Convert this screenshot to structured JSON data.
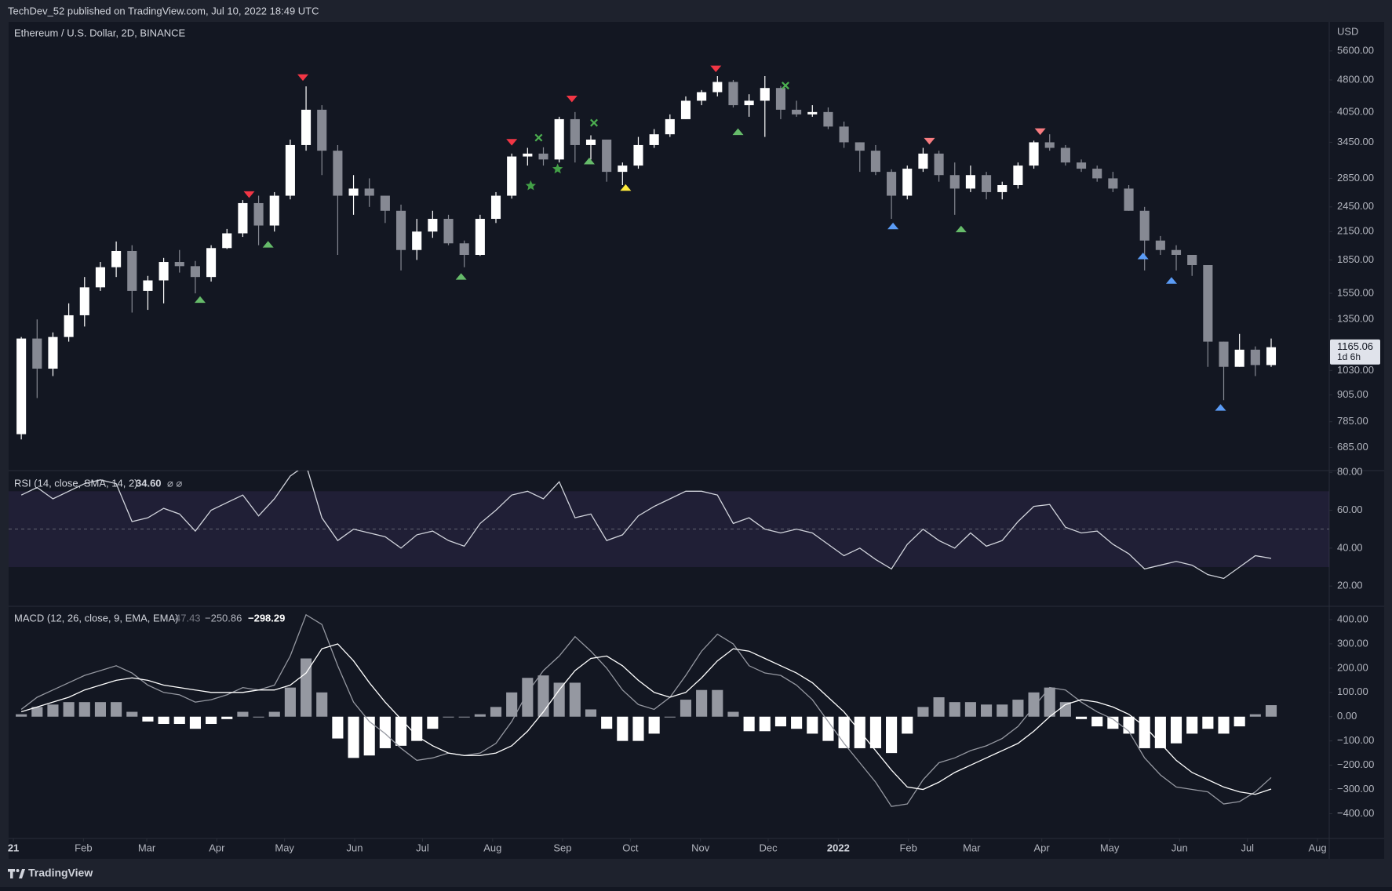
{
  "header": {
    "publisher": "TechDev_52 published on TradingView.com, Jul 10, 2022 18:49 UTC"
  },
  "footer": {
    "brand": "TradingView"
  },
  "chart_data": [
    {
      "type": "candlestick",
      "title": "Ethereum / U.S. Dollar, 2D, BINANCE",
      "y_unit": "USD",
      "log_scale": true,
      "grid": false,
      "xlim": [
        -0.8,
        82.67
      ],
      "xticks": [
        {
          "value": -0.5,
          "label": "21"
        },
        {
          "value": 3.93,
          "label": "Feb"
        },
        {
          "value": 7.93,
          "label": "Mar"
        },
        {
          "value": 12.36,
          "label": "Apr"
        },
        {
          "value": 16.64,
          "label": "May"
        },
        {
          "value": 21.07,
          "label": "Jun"
        },
        {
          "value": 25.36,
          "label": "Jul"
        },
        {
          "value": 29.79,
          "label": "Aug"
        },
        {
          "value": 34.21,
          "label": "Sep"
        },
        {
          "value": 38.5,
          "label": "Oct"
        },
        {
          "value": 42.93,
          "label": "Nov"
        },
        {
          "value": 47.21,
          "label": "Dec"
        },
        {
          "value": 51.64,
          "label": "2022"
        },
        {
          "value": 56.07,
          "label": "Feb"
        },
        {
          "value": 60.07,
          "label": "Mar"
        },
        {
          "value": 64.5,
          "label": "Apr"
        },
        {
          "value": 68.79,
          "label": "May"
        },
        {
          "value": 73.21,
          "label": "Jun"
        },
        {
          "value": 77.5,
          "label": "Jul"
        },
        {
          "value": 81.93,
          "label": "Aug"
        }
      ],
      "ylim": [
        606,
        6500
      ],
      "yticks": [
        {
          "value": 685,
          "label": "685.00"
        },
        {
          "value": 785,
          "label": "785.00"
        },
        {
          "value": 905,
          "label": "905.00"
        },
        {
          "value": 1030,
          "label": "1030.00"
        },
        {
          "value": 1350,
          "label": "1350.00"
        },
        {
          "value": 1550,
          "label": "1550.00"
        },
        {
          "value": 1850,
          "label": "1850.00"
        },
        {
          "value": 2150,
          "label": "2150.00"
        },
        {
          "value": 2450,
          "label": "2450.00"
        },
        {
          "value": 2850,
          "label": "2850.00"
        },
        {
          "value": 3450,
          "label": "3450.00"
        },
        {
          "value": 4050,
          "label": "4050.00"
        },
        {
          "value": 4800,
          "label": "4800.00"
        },
        {
          "value": 5600,
          "label": "5600.00"
        }
      ],
      "up_color": "#ffffff",
      "down_color": "#868993",
      "open": [
        735,
        1220,
        1040,
        1230,
        1380,
        1600,
        1780,
        1940,
        1570,
        1660,
        1830,
        1790,
        1690,
        1970,
        2130,
        2500,
        2220,
        2600,
        3400,
        4100,
        3300,
        2600,
        2700,
        2600,
        2400,
        1950,
        2150,
        2300,
        2020,
        1900,
        2300,
        2600,
        3200,
        3250,
        3150,
        3900,
        3400,
        3500,
        2950,
        3050,
        3400,
        3600,
        3900,
        4300,
        4500,
        4750,
        4200,
        4300,
        4600,
        4100,
        4000,
        4050,
        3750,
        3450,
        3300,
        2950,
        2600,
        3000,
        3250,
        2900,
        2700,
        2900,
        2650,
        2750,
        3050,
        3450,
        3350,
        3100,
        3000,
        2850,
        2700,
        2400,
        2050,
        1950,
        1900,
        1800,
        1200,
        1050,
        1150,
        1060
      ],
      "high": [
        1230,
        1350,
        1260,
        1470,
        1690,
        1830,
        2040,
        2000,
        1700,
        1870,
        1950,
        1840,
        2000,
        2180,
        2540,
        2600,
        2650,
        3500,
        4640,
        4200,
        3400,
        2900,
        2850,
        2600,
        2480,
        2300,
        2400,
        2350,
        2050,
        2350,
        2650,
        3250,
        3350,
        3360,
        3950,
        4050,
        3580,
        3500,
        3100,
        3550,
        3700,
        4000,
        4400,
        4550,
        4900,
        4800,
        4450,
        4900,
        4650,
        4300,
        4200,
        4150,
        3850,
        3450,
        3400,
        2990,
        3050,
        3350,
        3300,
        3100,
        3050,
        2950,
        2800,
        3100,
        3480,
        3600,
        3400,
        3150,
        3050,
        2950,
        2750,
        2450,
        2100,
        2000,
        1900,
        1800,
        1200,
        1250,
        1170,
        1220
      ],
      "low": [
        715,
        890,
        1000,
        1200,
        1300,
        1570,
        1690,
        1400,
        1420,
        1470,
        1730,
        1550,
        1650,
        1960,
        2090,
        2000,
        2150,
        2550,
        3300,
        2900,
        1900,
        2350,
        2450,
        2250,
        1750,
        1850,
        2080,
        2000,
        1780,
        1890,
        2250,
        2560,
        3050,
        3050,
        3100,
        3100,
        3150,
        2800,
        2750,
        3000,
        3350,
        3550,
        3900,
        4200,
        4400,
        4150,
        3950,
        3550,
        3900,
        3950,
        3950,
        3700,
        3350,
        2950,
        2900,
        2300,
        2550,
        2950,
        2800,
        2350,
        2650,
        2550,
        2550,
        2700,
        3000,
        3300,
        3050,
        2950,
        2800,
        2650,
        2400,
        1750,
        1900,
        1750,
        1700,
        1050,
        880,
        1050,
        1000,
        1050
      ],
      "close": [
        1220,
        1040,
        1230,
        1380,
        1600,
        1780,
        1940,
        1570,
        1660,
        1830,
        1790,
        1690,
        1970,
        2130,
        2500,
        2220,
        2600,
        3400,
        4100,
        3300,
        2600,
        2700,
        2600,
        2400,
        1950,
        2150,
        2300,
        2020,
        1900,
        2300,
        2600,
        3200,
        3250,
        3150,
        3900,
        3400,
        3500,
        2950,
        3050,
        3400,
        3600,
        3900,
        4300,
        4500,
        4750,
        4200,
        4300,
        4600,
        4100,
        4000,
        4050,
        3750,
        3450,
        3300,
        2950,
        2600,
        3000,
        3250,
        2900,
        2700,
        2900,
        2650,
        2750,
        3050,
        3450,
        3350,
        3100,
        3000,
        2850,
        2700,
        2400,
        2050,
        1950,
        1900,
        1800,
        1200,
        1050,
        1150,
        1060,
        1165.06
      ],
      "last_price": {
        "value": 1165.06,
        "label": "1165.06"
      },
      "countdown": "1d 6h",
      "markers": [
        {
          "shape": "triangle-down",
          "color": "#f23645",
          "x": [
            14.4,
            17.8,
            31.0,
            34.8,
            43.9
          ],
          "values": [
            2615,
            4860,
            3450,
            4340,
            5090
          ]
        },
        {
          "shape": "triangle-down",
          "color": "#f77c80",
          "x": [
            57.4,
            64.4
          ],
          "values": [
            3470,
            3650
          ]
        },
        {
          "shape": "triangle-up",
          "color": "#66bb6a",
          "x": [
            11.3,
            15.6,
            27.8,
            35.9,
            45.3,
            59.4
          ],
          "values": [
            1500,
            2010,
            1695,
            3125,
            3650,
            2180
          ]
        },
        {
          "shape": "triangle-up",
          "color": "#5b9cf6",
          "x": [
            55.1,
            70.9,
            72.7,
            75.8
          ],
          "values": [
            2215,
            1890,
            1660,
            847
          ]
        },
        {
          "shape": "triangle-up",
          "color": "#ffeb3b",
          "x": [
            38.2
          ],
          "values": [
            2715
          ]
        },
        {
          "shape": "star",
          "color": "#43a047",
          "x": [
            32.2,
            33.9
          ],
          "values": [
            2740,
            2995
          ]
        },
        {
          "shape": "cross",
          "color": "#4caf50",
          "x": [
            32.7,
            36.2,
            48.3
          ],
          "values": [
            3535,
            3825,
            4660
          ]
        }
      ]
    },
    {
      "type": "line",
      "title": "RSI (14, close, SMA, 14, 2)",
      "current": {
        "value": 34.6,
        "label": "34.60"
      },
      "flags": "⌀ ⌀",
      "ylim": [
        9.3,
        80.9
      ],
      "yticks": [
        {
          "value": 20,
          "label": "20.00"
        },
        {
          "value": 40,
          "label": "40.00"
        },
        {
          "value": 60,
          "label": "60.00"
        },
        {
          "value": 80,
          "label": "80.00"
        }
      ],
      "band": [
        30,
        70
      ],
      "band_color": "rgba(126,87,194,0.13)",
      "midline": 50,
      "series": [
        {
          "color": "#d1d4dc",
          "values": [
            68,
            72,
            66,
            70,
            74,
            76,
            74,
            54,
            56,
            61,
            58,
            49,
            60,
            64,
            68,
            57,
            66,
            78,
            84,
            56,
            44,
            50,
            48,
            46,
            40,
            47,
            49,
            44,
            41,
            53,
            60,
            68,
            70,
            66,
            75,
            56,
            58,
            44,
            47,
            57,
            62,
            66,
            70,
            70,
            68,
            53,
            56,
            50,
            48,
            50,
            48,
            42,
            36,
            40,
            34,
            29,
            42,
            50,
            44,
            40,
            48,
            41,
            44,
            54,
            62,
            63,
            51,
            48,
            49,
            42,
            37,
            29,
            31,
            33,
            31,
            26,
            24,
            30,
            36,
            34.6
          ]
        }
      ]
    },
    {
      "type": "macd",
      "title": "MACD (12, 26, close, 9, EMA, EMA)",
      "readout": [
        {
          "value": 47.43,
          "label": "47.43"
        },
        {
          "value": -250.86,
          "label": "−250.86"
        },
        {
          "value": -298.29,
          "label": "−298.29"
        }
      ],
      "ylim": [
        -502,
        455
      ],
      "yticks": [
        {
          "value": -400,
          "label": "−400.00"
        },
        {
          "value": -300,
          "label": "−300.00"
        },
        {
          "value": -200,
          "label": "−200.00"
        },
        {
          "value": -100,
          "label": "−100.00"
        },
        {
          "value": 0,
          "label": "0.00"
        },
        {
          "value": 100,
          "label": "100.00"
        },
        {
          "value": 200,
          "label": "200.00"
        },
        {
          "value": 300,
          "label": "300.00"
        },
        {
          "value": 400,
          "label": "400.00"
        }
      ],
      "histogram": {
        "up_color": "#9598a1",
        "down_color": "#ffffff",
        "values": [
          10,
          40,
          50,
          60,
          60,
          60,
          60,
          20,
          -20,
          -30,
          -30,
          -50,
          -30,
          -10,
          20,
          0,
          20,
          120,
          240,
          100,
          -90,
          -170,
          -160,
          -130,
          -120,
          -100,
          -50,
          0,
          0,
          10,
          40,
          100,
          160,
          170,
          140,
          140,
          30,
          -50,
          -100,
          -100,
          -70,
          0,
          70,
          110,
          110,
          20,
          -60,
          -60,
          -40,
          -50,
          -70,
          -100,
          -130,
          -130,
          -130,
          -150,
          -70,
          40,
          80,
          60,
          60,
          50,
          50,
          70,
          100,
          120,
          60,
          -10,
          -40,
          -50,
          -70,
          -130,
          -130,
          -110,
          -70,
          -50,
          -70,
          -40,
          10,
          47.43
        ]
      },
      "series": [
        {
          "color": "#9598a1",
          "values": [
            30,
            80,
            110,
            140,
            170,
            190,
            210,
            180,
            130,
            100,
            90,
            60,
            70,
            90,
            120,
            110,
            130,
            250,
            420,
            380,
            210,
            60,
            -20,
            -70,
            -130,
            -180,
            -170,
            -150,
            -160,
            -150,
            -110,
            -20,
            100,
            190,
            250,
            330,
            270,
            200,
            110,
            50,
            30,
            80,
            170,
            270,
            340,
            300,
            210,
            180,
            170,
            130,
            70,
            -20,
            -110,
            -190,
            -270,
            -370,
            -360,
            -260,
            -190,
            -170,
            -140,
            -120,
            -90,
            -40,
            40,
            120,
            110,
            60,
            20,
            -10,
            -60,
            -170,
            -240,
            -290,
            -300,
            -310,
            -360,
            -350,
            -310,
            -250.86
          ]
        },
        {
          "color": "#ffffff",
          "values": [
            20,
            40,
            60,
            80,
            110,
            130,
            150,
            160,
            150,
            130,
            120,
            110,
            100,
            100,
            100,
            110,
            110,
            130,
            180,
            280,
            300,
            230,
            140,
            60,
            -10,
            -80,
            -120,
            -150,
            -160,
            -160,
            -150,
            -120,
            -60,
            20,
            110,
            190,
            240,
            250,
            210,
            150,
            100,
            80,
            100,
            160,
            230,
            280,
            270,
            240,
            210,
            180,
            140,
            80,
            20,
            -60,
            -140,
            -220,
            -290,
            -300,
            -270,
            -230,
            -200,
            -170,
            -140,
            -110,
            -60,
            0,
            50,
            70,
            60,
            40,
            10,
            -40,
            -110,
            -180,
            -230,
            -260,
            -290,
            -310,
            -320,
            -298.29
          ]
        }
      ]
    }
  ]
}
